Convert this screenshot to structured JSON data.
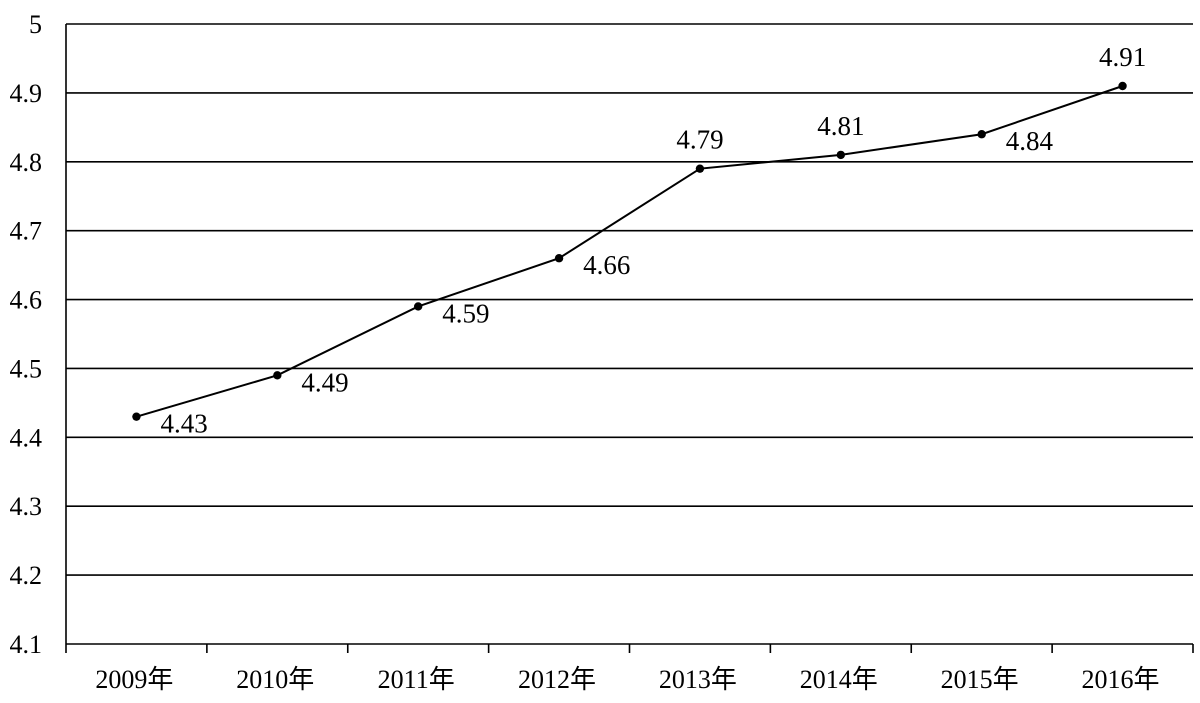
{
  "chart_data": {
    "type": "line",
    "title": "",
    "xlabel": "",
    "ylabel": "",
    "categories": [
      "2009年",
      "2010年",
      "2011年",
      "2012年",
      "2013年",
      "2014年",
      "2015年",
      "2016年"
    ],
    "series": [
      {
        "values": [
          4.43,
          4.49,
          4.59,
          4.66,
          4.79,
          4.81,
          4.84,
          4.91
        ]
      }
    ],
    "data_labels": [
      "4.43",
      "4.49",
      "4.59",
      "4.66",
      "4.79",
      "4.81",
      "4.84",
      "4.91"
    ],
    "ylim": [
      4.1,
      5
    ],
    "y_ticks": [
      "4.1",
      "4.2",
      "4.3",
      "4.4",
      "4.5",
      "4.6",
      "4.7",
      "4.8",
      "4.9",
      "5"
    ],
    "grid": true,
    "legend": "none",
    "colors": {
      "line": "#000000",
      "grid": "#000000",
      "background": "#ffffff"
    }
  }
}
